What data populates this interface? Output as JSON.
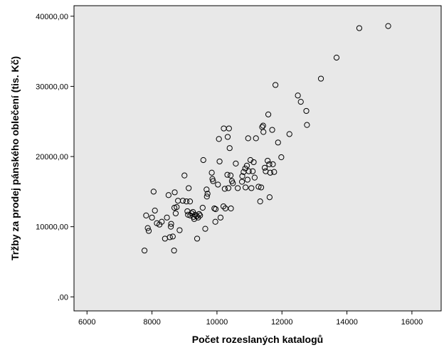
{
  "chart_data": {
    "type": "scatter",
    "xlabel": "Počet rozeslaných katalogů",
    "ylabel": "Tržby za prodej pánského oblečení (tis. Kč)",
    "xlim": [
      5600,
      16900
    ],
    "ylim": [
      -2000,
      41500
    ],
    "x_ticks": [
      6000,
      8000,
      10000,
      12000,
      14000,
      16000
    ],
    "x_tick_labels": [
      "6000",
      "8000",
      "10000",
      "12000",
      "14000",
      "16000"
    ],
    "y_ticks": [
      0,
      10000,
      20000,
      30000,
      40000
    ],
    "y_tick_labels": [
      ",00",
      "10000,00",
      "20000,00",
      "30000,00",
      "40000,00"
    ],
    "grid": false,
    "plot_background": "#e8e8e8",
    "marker_color": "#000000",
    "points": [
      [
        7770,
        6600
      ],
      [
        7820,
        11600
      ],
      [
        7870,
        9800
      ],
      [
        7900,
        9400
      ],
      [
        8000,
        11300
      ],
      [
        8050,
        15000
      ],
      [
        8090,
        12300
      ],
      [
        8150,
        10500
      ],
      [
        8230,
        10300
      ],
      [
        8300,
        10700
      ],
      [
        8400,
        8300
      ],
      [
        8460,
        11300
      ],
      [
        8510,
        14500
      ],
      [
        8550,
        8500
      ],
      [
        8580,
        10000
      ],
      [
        8590,
        10400
      ],
      [
        8640,
        8600
      ],
      [
        8680,
        6600
      ],
      [
        8690,
        12700
      ],
      [
        8700,
        14900
      ],
      [
        8730,
        11900
      ],
      [
        8760,
        12800
      ],
      [
        8800,
        13700
      ],
      [
        8850,
        9500
      ],
      [
        8950,
        13700
      ],
      [
        9000,
        17300
      ],
      [
        9060,
        13600
      ],
      [
        9090,
        12200
      ],
      [
        9110,
        11700
      ],
      [
        9130,
        15500
      ],
      [
        9170,
        13600
      ],
      [
        9180,
        11600
      ],
      [
        9220,
        11900
      ],
      [
        9260,
        12100
      ],
      [
        9280,
        11400
      ],
      [
        9300,
        11100
      ],
      [
        9330,
        11700
      ],
      [
        9380,
        11500
      ],
      [
        9390,
        8300
      ],
      [
        9420,
        11300
      ],
      [
        9450,
        11800
      ],
      [
        9480,
        11600
      ],
      [
        9560,
        12700
      ],
      [
        9580,
        19500
      ],
      [
        9640,
        9700
      ],
      [
        9680,
        15300
      ],
      [
        9690,
        14300
      ],
      [
        9710,
        14700
      ],
      [
        9840,
        17700
      ],
      [
        9860,
        16800
      ],
      [
        9880,
        16500
      ],
      [
        9920,
        12600
      ],
      [
        9950,
        10700
      ],
      [
        9960,
        12500
      ],
      [
        10030,
        16000
      ],
      [
        10060,
        22500
      ],
      [
        10080,
        19300
      ],
      [
        10110,
        11300
      ],
      [
        10200,
        12900
      ],
      [
        10210,
        24000
      ],
      [
        10240,
        15400
      ],
      [
        10260,
        12600
      ],
      [
        10320,
        17400
      ],
      [
        10330,
        22800
      ],
      [
        10350,
        15500
      ],
      [
        10370,
        24000
      ],
      [
        10390,
        21200
      ],
      [
        10420,
        17300
      ],
      [
        10430,
        12600
      ],
      [
        10460,
        16500
      ],
      [
        10490,
        16200
      ],
      [
        10580,
        19000
      ],
      [
        10640,
        15500
      ],
      [
        10770,
        16400
      ],
      [
        10780,
        17200
      ],
      [
        10820,
        17800
      ],
      [
        10870,
        18300
      ],
      [
        10880,
        15600
      ],
      [
        10920,
        18700
      ],
      [
        10940,
        16700
      ],
      [
        10960,
        22600
      ],
      [
        10980,
        17900
      ],
      [
        11030,
        19500
      ],
      [
        11060,
        15500
      ],
      [
        11100,
        17900
      ],
      [
        11130,
        19200
      ],
      [
        11160,
        17000
      ],
      [
        11200,
        22600
      ],
      [
        11280,
        15700
      ],
      [
        11330,
        13600
      ],
      [
        11360,
        15600
      ],
      [
        11390,
        24200
      ],
      [
        11420,
        24400
      ],
      [
        11430,
        23500
      ],
      [
        11470,
        18400
      ],
      [
        11500,
        17900
      ],
      [
        11560,
        19400
      ],
      [
        11580,
        26000
      ],
      [
        11610,
        18900
      ],
      [
        11620,
        14200
      ],
      [
        11640,
        17700
      ],
      [
        11700,
        23800
      ],
      [
        11720,
        18900
      ],
      [
        11760,
        17800
      ],
      [
        11800,
        30200
      ],
      [
        11880,
        22000
      ],
      [
        11980,
        19900
      ],
      [
        12230,
        23200
      ],
      [
        12490,
        28700
      ],
      [
        12580,
        27800
      ],
      [
        12750,
        26500
      ],
      [
        12770,
        24500
      ],
      [
        13200,
        31100
      ],
      [
        13680,
        34100
      ],
      [
        14380,
        38300
      ],
      [
        15270,
        38600
      ]
    ]
  }
}
